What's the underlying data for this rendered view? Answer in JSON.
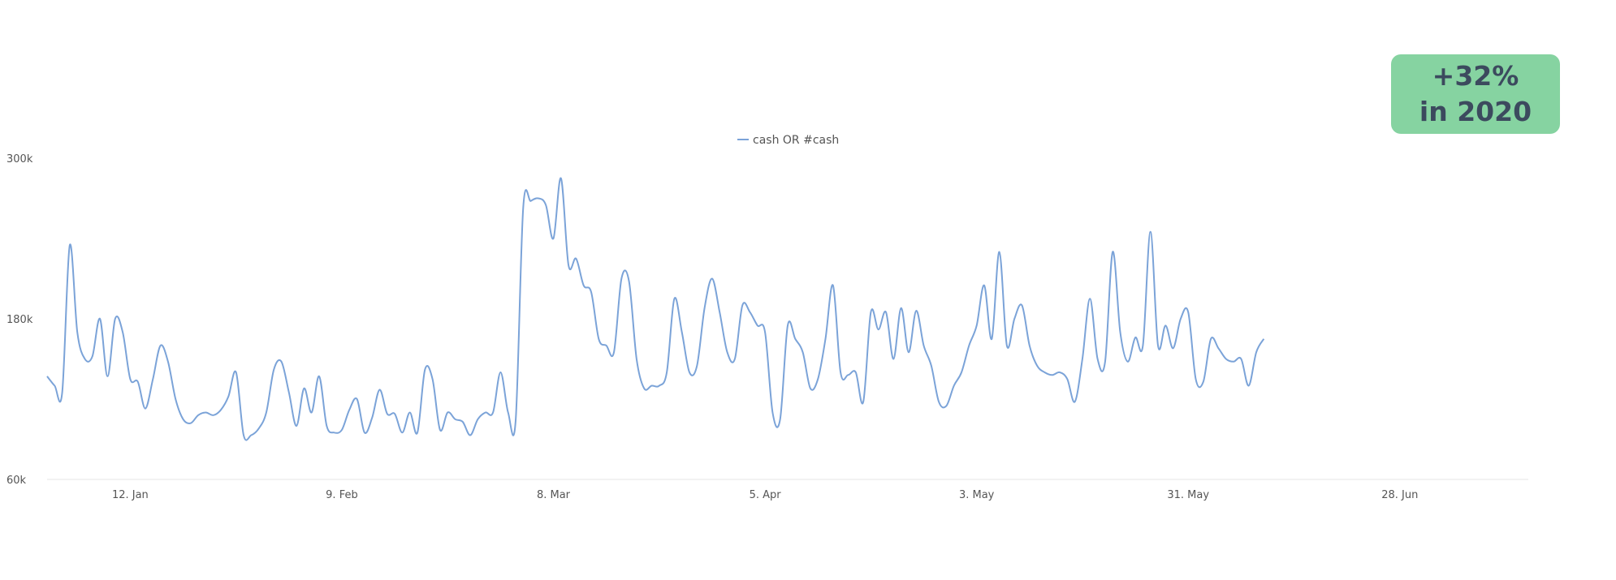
{
  "badge": {
    "line1": "+32%",
    "line2": "in 2020",
    "color": "#86d3a1",
    "text_color": "#3c4a5e"
  },
  "chart_data": {
    "type": "line",
    "title": "",
    "xlabel": "",
    "ylabel": "",
    "legend": {
      "position": "top-center"
    },
    "grid": false,
    "ylim": [
      60000,
      300000
    ],
    "y_ticks": [
      {
        "value": 60000,
        "label": "60k"
      },
      {
        "value": 180000,
        "label": "180k"
      },
      {
        "value": 300000,
        "label": "300k"
      }
    ],
    "x_range": [
      "2020-01-01",
      "2020-07-15"
    ],
    "x_ticks": [
      {
        "date": "2020-01-12",
        "label": "12. Jan"
      },
      {
        "date": "2020-02-09",
        "label": "9. Feb"
      },
      {
        "date": "2020-03-08",
        "label": "8. Mar"
      },
      {
        "date": "2020-04-05",
        "label": "5. Apr"
      },
      {
        "date": "2020-05-03",
        "label": "3. May"
      },
      {
        "date": "2020-05-31",
        "label": "31. May"
      },
      {
        "date": "2020-06-28",
        "label": "28. Jun"
      }
    ],
    "series": [
      {
        "name": "cash OR #cash",
        "color": "#7ba3d8",
        "start_date": "2020-01-01",
        "values": [
          137000,
          130000,
          125000,
          235000,
          170000,
          150000,
          152000,
          180000,
          137000,
          180000,
          170000,
          135000,
          133000,
          113000,
          135000,
          160000,
          148000,
          120000,
          105000,
          102000,
          108000,
          110000,
          108000,
          112000,
          122000,
          140000,
          93000,
          93000,
          98000,
          110000,
          142000,
          148000,
          125000,
          100000,
          128000,
          110000,
          137000,
          100000,
          95000,
          97000,
          112000,
          120000,
          95000,
          106000,
          127000,
          109000,
          109000,
          95000,
          110000,
          95000,
          142000,
          135000,
          97000,
          110000,
          105000,
          103000,
          93000,
          105000,
          110000,
          110000,
          140000,
          110000,
          104000,
          263000,
          268000,
          270000,
          265000,
          240000,
          285000,
          220000,
          225000,
          205000,
          200000,
          165000,
          160000,
          155000,
          210000,
          208000,
          150000,
          128000,
          130000,
          130000,
          140000,
          195000,
          170000,
          140000,
          145000,
          188000,
          210000,
          185000,
          155000,
          150000,
          190000,
          185000,
          175000,
          170000,
          110000,
          105000,
          175000,
          165000,
          155000,
          128000,
          135000,
          165000,
          205000,
          140000,
          138000,
          140000,
          118000,
          185000,
          172000,
          185000,
          150000,
          188000,
          155000,
          186000,
          160000,
          145000,
          118000,
          115000,
          130000,
          140000,
          160000,
          175000,
          205000,
          165000,
          230000,
          160000,
          180000,
          190000,
          160000,
          145000,
          140000,
          138000,
          140000,
          135000,
          118000,
          150000,
          195000,
          150000,
          148000,
          230000,
          170000,
          148000,
          166000,
          160000,
          245000,
          160000,
          175000,
          158000,
          180000,
          185000,
          135000,
          133000,
          165000,
          158000,
          150000,
          148000,
          150000,
          130000,
          155000,
          165000
        ]
      }
    ]
  }
}
